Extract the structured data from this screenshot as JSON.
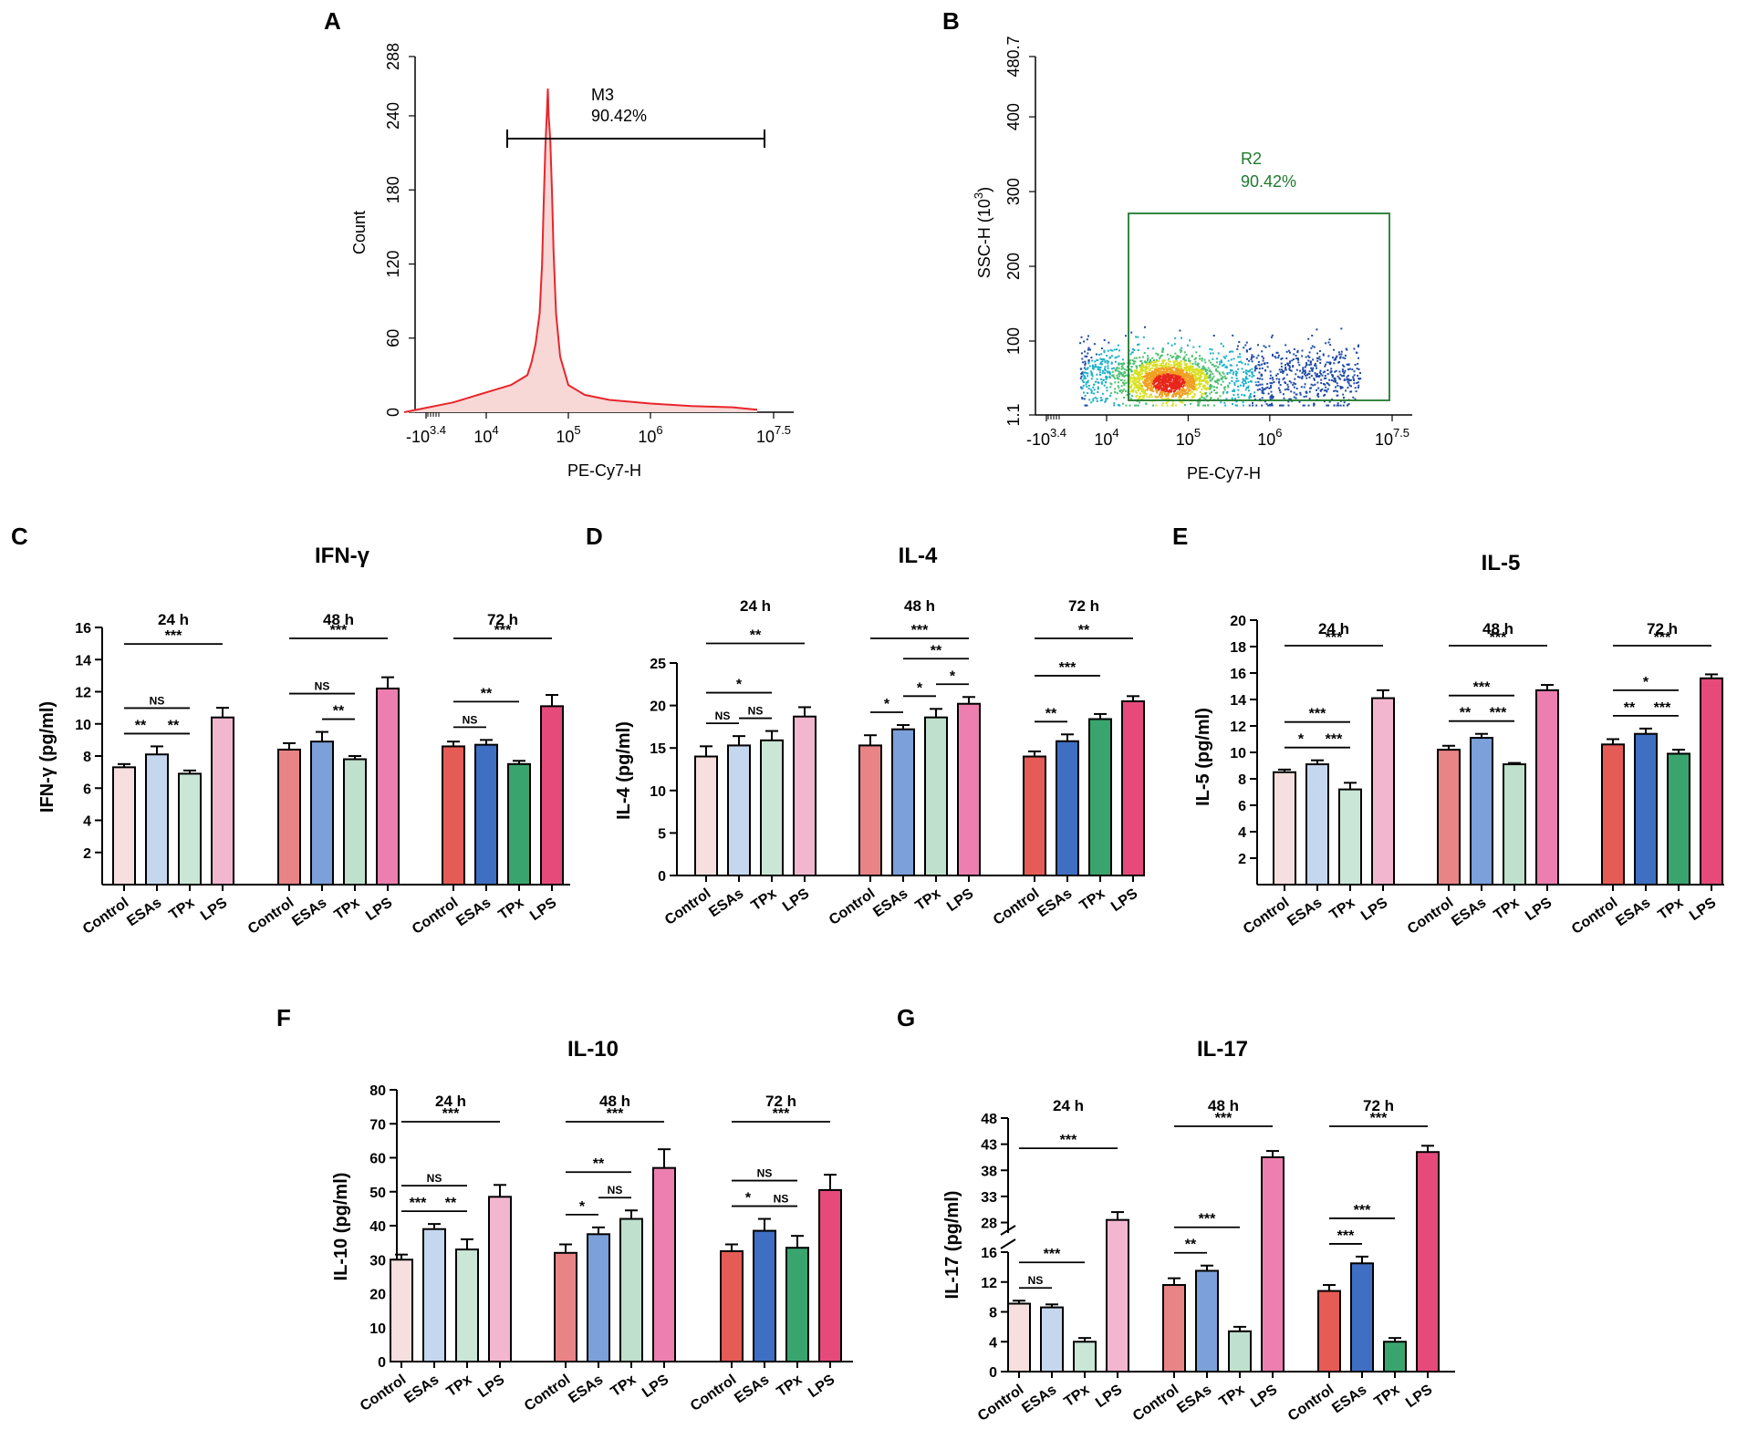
{
  "chart_data": [
    {
      "type": "histogram",
      "panel": "A",
      "xlabel": "PE-Cy7-H",
      "ylabel": "Count",
      "yticks": [
        "0",
        "60",
        "120",
        "180",
        "240",
        "288"
      ],
      "xticks": [
        {
          "base": "-10",
          "exp": "3.4"
        },
        {
          "base": "10",
          "exp": "4"
        },
        {
          "base": "10",
          "exp": "5"
        },
        {
          "base": "10",
          "exp": "6"
        },
        {
          "base": "10",
          "exp": "7.5"
        }
      ],
      "gate": {
        "name": "M3",
        "percent": "90.42%"
      },
      "color": "#e8262b",
      "fill": "#f7d8d6",
      "curve_log10": [
        [
          3.0,
          0
        ],
        [
          3.6,
          8
        ],
        [
          3.9,
          14
        ],
        [
          4.1,
          18
        ],
        [
          4.3,
          22
        ],
        [
          4.5,
          30
        ],
        [
          4.55,
          40
        ],
        [
          4.6,
          55
        ],
        [
          4.65,
          80
        ],
        [
          4.68,
          120
        ],
        [
          4.7,
          170
        ],
        [
          4.72,
          215
        ],
        [
          4.74,
          245
        ],
        [
          4.75,
          262
        ],
        [
          4.76,
          240
        ],
        [
          4.78,
          220
        ],
        [
          4.8,
          180
        ],
        [
          4.82,
          130
        ],
        [
          4.85,
          80
        ],
        [
          4.9,
          45
        ],
        [
          5.0,
          22
        ],
        [
          5.2,
          14
        ],
        [
          5.5,
          10
        ],
        [
          6.0,
          7
        ],
        [
          6.5,
          5
        ],
        [
          7.0,
          4
        ],
        [
          7.3,
          2
        ]
      ]
    },
    {
      "type": "scatter",
      "panel": "B",
      "xlabel": "PE-Cy7-H",
      "ylabel_base": "SSC-H  (10",
      "ylabel_exp": "3",
      "ylabel_end": ")",
      "yticks": [
        "1.1",
        "100",
        "200",
        "300",
        "400",
        "480.7"
      ],
      "xticks": [
        {
          "base": "-10",
          "exp": "3.4"
        },
        {
          "base": "10",
          "exp": "4"
        },
        {
          "base": "10",
          "exp": "5"
        },
        {
          "base": "10",
          "exp": "6"
        },
        {
          "base": "10",
          "exp": "7.5"
        }
      ],
      "gate": {
        "name": "R2",
        "percent": "90.42%"
      },
      "color": "#1f7a2e"
    },
    {
      "type": "bar",
      "panel": "C",
      "title": "IFN-γ",
      "ylabel": "IFN-γ (pg/ml)",
      "ylim": [
        0,
        16
      ],
      "yticks": [
        2,
        4,
        6,
        8,
        10,
        12,
        14,
        16
      ],
      "groups": [
        {
          "name": "24 h",
          "categories": [
            "Control",
            "ESAs",
            "TPx",
            "LPS"
          ],
          "values": [
            7.3,
            8.1,
            6.9,
            10.4
          ],
          "errors": [
            0.2,
            0.5,
            0.2,
            0.6
          ]
        },
        {
          "name": "48 h",
          "categories": [
            "Control",
            "ESAs",
            "TPx",
            "LPS"
          ],
          "values": [
            8.4,
            8.9,
            7.8,
            12.2
          ],
          "errors": [
            0.4,
            0.6,
            0.2,
            0.7
          ]
        },
        {
          "name": "72 h",
          "categories": [
            "Control",
            "ESAs",
            "TPx",
            "LPS"
          ],
          "values": [
            8.6,
            8.7,
            7.5,
            11.1
          ],
          "errors": [
            0.3,
            0.3,
            0.2,
            0.7
          ]
        }
      ],
      "significance": [
        {
          "group": 0,
          "from": 0,
          "to": 1,
          "label": "**"
        },
        {
          "group": 0,
          "from": 1,
          "to": 2,
          "label": "**"
        },
        {
          "group": 0,
          "from": 0,
          "to": 2,
          "label": "NS"
        },
        {
          "group": 0,
          "from": 0,
          "to": 3,
          "label": "***"
        },
        {
          "group": 1,
          "from": 1,
          "to": 2,
          "label": "**"
        },
        {
          "group": 1,
          "from": 0,
          "to": 2,
          "label": "NS"
        },
        {
          "group": 1,
          "from": 0,
          "to": 3,
          "label": "***"
        },
        {
          "group": 2,
          "from": 0,
          "to": 1,
          "label": "NS"
        },
        {
          "group": 2,
          "from": 0,
          "to": 2,
          "label": "**"
        },
        {
          "group": 2,
          "from": 0,
          "to": 3,
          "label": "***"
        }
      ]
    },
    {
      "type": "bar",
      "panel": "D",
      "title": "IL-4",
      "ylabel": "IL-4 (pg/ml)",
      "ylim": [
        0,
        25
      ],
      "yticks": [
        0,
        5,
        10,
        15,
        20,
        25
      ],
      "groups": [
        {
          "name": "24 h",
          "categories": [
            "Control",
            "ESAs",
            "TPx",
            "LPS"
          ],
          "values": [
            14.0,
            15.3,
            15.9,
            18.7
          ],
          "errors": [
            1.2,
            1.1,
            1.1,
            1.1
          ]
        },
        {
          "name": "48 h",
          "categories": [
            "Control",
            "ESAs",
            "TPx",
            "LPS"
          ],
          "values": [
            15.3,
            17.2,
            18.6,
            20.2
          ],
          "errors": [
            1.2,
            0.5,
            1.0,
            0.8
          ]
        },
        {
          "name": "72 h",
          "categories": [
            "Control",
            "ESAs",
            "TPx",
            "LPS"
          ],
          "values": [
            14.0,
            15.8,
            18.4,
            20.5
          ],
          "errors": [
            0.6,
            0.8,
            0.6,
            0.6
          ]
        }
      ],
      "significance": [
        {
          "group": 0,
          "from": 0,
          "to": 1,
          "label": "NS"
        },
        {
          "group": 0,
          "from": 1,
          "to": 2,
          "label": "NS"
        },
        {
          "group": 0,
          "from": 0,
          "to": 2,
          "label": "*"
        },
        {
          "group": 0,
          "from": 0,
          "to": 3,
          "label": "**"
        },
        {
          "group": 1,
          "from": 0,
          "to": 1,
          "label": "*"
        },
        {
          "group": 1,
          "from": 1,
          "to": 2,
          "label": "*"
        },
        {
          "group": 1,
          "from": 2,
          "to": 3,
          "label": "*"
        },
        {
          "group": 1,
          "from": 1,
          "to": 3,
          "label": "**"
        },
        {
          "group": 1,
          "from": 0,
          "to": 3,
          "label": "***"
        },
        {
          "group": 2,
          "from": 0,
          "to": 1,
          "label": "**"
        },
        {
          "group": 2,
          "from": 0,
          "to": 2,
          "label": "***"
        },
        {
          "group": 2,
          "from": 0,
          "to": 3,
          "label": "**"
        }
      ]
    },
    {
      "type": "bar",
      "panel": "E",
      "title": "IL-5",
      "ylabel": "IL-5 (pg/ml)",
      "ylim": [
        0,
        20
      ],
      "yticks": [
        2,
        4,
        6,
        8,
        10,
        12,
        14,
        16,
        18,
        20
      ],
      "groups": [
        {
          "name": "24 h",
          "categories": [
            "Control",
            "ESAs",
            "TPx",
            "LPS"
          ],
          "values": [
            8.5,
            9.1,
            7.2,
            14.1
          ],
          "errors": [
            0.2,
            0.3,
            0.5,
            0.6
          ]
        },
        {
          "name": "48 h",
          "categories": [
            "Control",
            "ESAs",
            "TPx",
            "LPS"
          ],
          "values": [
            10.2,
            11.1,
            9.1,
            14.7
          ],
          "errors": [
            0.3,
            0.3,
            0.1,
            0.4
          ]
        },
        {
          "name": "72 h",
          "categories": [
            "Control",
            "ESAs",
            "TPx",
            "LPS"
          ],
          "values": [
            10.6,
            11.4,
            9.9,
            15.6
          ],
          "errors": [
            0.4,
            0.4,
            0.3,
            0.3
          ]
        }
      ],
      "significance": [
        {
          "group": 0,
          "from": 0,
          "to": 1,
          "label": "*"
        },
        {
          "group": 0,
          "from": 1,
          "to": 2,
          "label": "***"
        },
        {
          "group": 0,
          "from": 0,
          "to": 2,
          "label": "***"
        },
        {
          "group": 0,
          "from": 0,
          "to": 3,
          "label": "***"
        },
        {
          "group": 1,
          "from": 0,
          "to": 1,
          "label": "**"
        },
        {
          "group": 1,
          "from": 1,
          "to": 2,
          "label": "***"
        },
        {
          "group": 1,
          "from": 0,
          "to": 2,
          "label": "***"
        },
        {
          "group": 1,
          "from": 0,
          "to": 3,
          "label": "***"
        },
        {
          "group": 2,
          "from": 0,
          "to": 1,
          "label": "**"
        },
        {
          "group": 2,
          "from": 1,
          "to": 2,
          "label": "***"
        },
        {
          "group": 2,
          "from": 0,
          "to": 2,
          "label": "*"
        },
        {
          "group": 2,
          "from": 0,
          "to": 3,
          "label": "***"
        }
      ]
    },
    {
      "type": "bar",
      "panel": "F",
      "title": "IL-10",
      "ylabel": "IL-10 (pg/ml)",
      "ylim": [
        0,
        80
      ],
      "yticks": [
        0,
        10,
        20,
        30,
        40,
        50,
        60,
        70,
        80
      ],
      "groups": [
        {
          "name": "24 h",
          "categories": [
            "Control",
            "ESAs",
            "TPx",
            "LPS"
          ],
          "values": [
            30,
            39,
            33,
            48.5
          ],
          "errors": [
            1.5,
            1.5,
            3,
            3.5
          ]
        },
        {
          "name": "48 h",
          "categories": [
            "Control",
            "ESAs",
            "TPx",
            "LPS"
          ],
          "values": [
            32,
            37.5,
            42,
            57
          ],
          "errors": [
            2.5,
            2,
            2.5,
            5.5
          ]
        },
        {
          "name": "72 h",
          "categories": [
            "Control",
            "ESAs",
            "TPx",
            "LPS"
          ],
          "values": [
            32.5,
            38.5,
            33.5,
            50.5
          ],
          "errors": [
            2,
            3.5,
            3.5,
            4.5
          ]
        }
      ],
      "significance": [
        {
          "group": 0,
          "from": 0,
          "to": 1,
          "label": "***"
        },
        {
          "group": 0,
          "from": 1,
          "to": 2,
          "label": "**"
        },
        {
          "group": 0,
          "from": 0,
          "to": 2,
          "label": "NS"
        },
        {
          "group": 0,
          "from": 0,
          "to": 3,
          "label": "***"
        },
        {
          "group": 1,
          "from": 0,
          "to": 1,
          "label": "*"
        },
        {
          "group": 1,
          "from": 1,
          "to": 2,
          "label": "NS"
        },
        {
          "group": 1,
          "from": 0,
          "to": 2,
          "label": "**"
        },
        {
          "group": 1,
          "from": 0,
          "to": 3,
          "label": "***"
        },
        {
          "group": 2,
          "from": 0,
          "to": 1,
          "label": "*"
        },
        {
          "group": 2,
          "from": 1,
          "to": 2,
          "label": "NS"
        },
        {
          "group": 2,
          "from": 0,
          "to": 2,
          "label": "NS"
        },
        {
          "group": 2,
          "from": 0,
          "to": 3,
          "label": "***"
        }
      ]
    },
    {
      "type": "bar",
      "panel": "G",
      "title": "IL-17",
      "ylabel": "IL-17 (pg/ml)",
      "axis_break": true,
      "lower_ylim": [
        0,
        16
      ],
      "lower_yticks": [
        0,
        4,
        8,
        12,
        16
      ],
      "upper_ylim": [
        26,
        48
      ],
      "upper_yticks": [
        28,
        33,
        38,
        43,
        48
      ],
      "groups": [
        {
          "name": "24 h",
          "categories": [
            "Control",
            "ESAs",
            "TPx",
            "LPS"
          ],
          "values": [
            9.1,
            8.6,
            4.0,
            28.5
          ],
          "errors": [
            0.4,
            0.4,
            0.5,
            1.5
          ]
        },
        {
          "name": "48 h",
          "categories": [
            "Control",
            "ESAs",
            "TPx",
            "LPS"
          ],
          "values": [
            11.6,
            13.5,
            5.4,
            40.5
          ],
          "errors": [
            0.9,
            0.7,
            0.6,
            1.2
          ]
        },
        {
          "name": "72 h",
          "categories": [
            "Control",
            "ESAs",
            "TPx",
            "LPS"
          ],
          "values": [
            10.8,
            14.5,
            4.0,
            41.5
          ],
          "errors": [
            0.8,
            0.9,
            0.5,
            1.2
          ]
        }
      ],
      "significance": [
        {
          "group": 0,
          "from": 0,
          "to": 1,
          "label": "NS"
        },
        {
          "group": 0,
          "from": 0,
          "to": 2,
          "label": "***"
        },
        {
          "group": 0,
          "from": 0,
          "to": 3,
          "label": "***"
        },
        {
          "group": 1,
          "from": 0,
          "to": 1,
          "label": "**"
        },
        {
          "group": 1,
          "from": 0,
          "to": 2,
          "label": "***"
        },
        {
          "group": 1,
          "from": 0,
          "to": 3,
          "label": "***"
        },
        {
          "group": 2,
          "from": 0,
          "to": 1,
          "label": "***"
        },
        {
          "group": 2,
          "from": 0,
          "to": 2,
          "label": "***"
        },
        {
          "group": 2,
          "from": 0,
          "to": 3,
          "label": "***"
        }
      ]
    }
  ],
  "bar_colors": [
    [
      "#f8dfdf",
      "#c5d7ee",
      "#c9e6d7",
      "#f3b6cf"
    ],
    [
      "#e98486",
      "#7ba0da",
      "#bfe0cc",
      "#ec7fb0"
    ],
    [
      "#e55b55",
      "#3f6fc2",
      "#3aa46f",
      "#e54a7b"
    ]
  ]
}
